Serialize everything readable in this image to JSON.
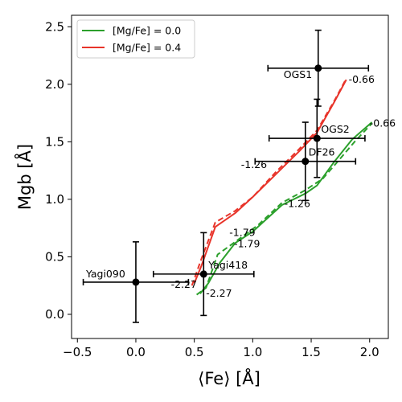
{
  "chart_data": {
    "type": "scatter",
    "xlabel": "⟨Fe⟩ [Å]",
    "ylabel": "Mgb [Å]",
    "xlim": [
      -0.55,
      2.16
    ],
    "ylim": [
      -0.21,
      2.6
    ],
    "xticks": [
      -0.5,
      0.0,
      0.5,
      1.0,
      1.5,
      2.0
    ],
    "xtick_labels": [
      "−0.5",
      "0.0",
      "0.5",
      "1.0",
      "1.5",
      "2.0"
    ],
    "yticks": [
      0.0,
      0.5,
      1.0,
      1.5,
      2.0,
      2.5
    ],
    "ytick_labels": [
      "0.0",
      "0.5",
      "1.0",
      "1.5",
      "2.0",
      "2.5"
    ],
    "grid": false,
    "legend_position": "top-left",
    "series": [
      {
        "name": "[Mg/Fe] = 0.0",
        "color": "#2ca02c",
        "solid": [
          [
            0.55,
            0.18
          ],
          [
            0.62,
            0.27
          ],
          [
            0.72,
            0.45
          ],
          [
            0.85,
            0.62
          ],
          [
            1.0,
            0.72
          ],
          [
            1.25,
            0.95
          ],
          [
            1.45,
            1.05
          ],
          [
            1.55,
            1.12
          ],
          [
            1.7,
            1.33
          ],
          [
            1.85,
            1.52
          ],
          [
            2.02,
            1.67
          ]
        ],
        "dashed": [
          [
            0.52,
            0.17
          ],
          [
            0.6,
            0.23
          ],
          [
            0.7,
            0.52
          ],
          [
            0.85,
            0.63
          ],
          [
            1.05,
            0.78
          ],
          [
            1.25,
            0.97
          ],
          [
            1.45,
            1.08
          ],
          [
            1.6,
            1.18
          ],
          [
            1.72,
            1.32
          ],
          [
            1.88,
            1.51
          ],
          [
            2.02,
            1.66
          ]
        ]
      },
      {
        "name": "[Mg/Fe] = 0.4",
        "color": "#e8342a",
        "solid": [
          [
            0.5,
            0.27
          ],
          [
            0.56,
            0.42
          ],
          [
            0.68,
            0.76
          ],
          [
            0.85,
            0.88
          ],
          [
            1.0,
            1.02
          ],
          [
            1.2,
            1.22
          ],
          [
            1.4,
            1.42
          ],
          [
            1.55,
            1.58
          ],
          [
            1.7,
            1.85
          ],
          [
            1.8,
            2.04
          ]
        ],
        "dashed": [
          [
            0.48,
            0.25
          ],
          [
            0.56,
            0.48
          ],
          [
            0.68,
            0.8
          ],
          [
            0.85,
            0.9
          ],
          [
            1.0,
            1.02
          ],
          [
            1.2,
            1.24
          ],
          [
            1.4,
            1.44
          ],
          [
            1.55,
            1.6
          ],
          [
            1.7,
            1.86
          ],
          [
            1.8,
            2.05
          ]
        ]
      }
    ],
    "points": [
      {
        "name": "Yagi090",
        "x": 0.0,
        "y": 0.28,
        "xerr": 0.45,
        "yerr": 0.35,
        "label_dx": -62,
        "label_dy": -6
      },
      {
        "name": "Yagi418",
        "x": 0.58,
        "y": 0.35,
        "xerr": 0.43,
        "yerr": 0.36,
        "label_dx": 6,
        "label_dy": -7
      },
      {
        "name": "DF26",
        "x": 1.45,
        "y": 1.33,
        "xerr": 0.43,
        "yerr": 0.34,
        "label_dx": 4,
        "label_dy": -7
      },
      {
        "name": "OGS2",
        "x": 1.55,
        "y": 1.53,
        "xerr": 0.41,
        "yerr": 0.34,
        "label_dx": 5,
        "label_dy": -7
      },
      {
        "name": "OGS1",
        "x": 1.56,
        "y": 2.14,
        "xerr": 0.43,
        "yerr": 0.33,
        "label_dx": -43,
        "label_dy": 12
      }
    ],
    "annotations": [
      {
        "text": "-2.27",
        "x": 0.3,
        "y": 0.26
      },
      {
        "text": "-2.27",
        "x": 0.6,
        "y": 0.18
      },
      {
        "text": "-1.79",
        "x": 0.8,
        "y": 0.71
      },
      {
        "text": "-1.79",
        "x": 0.84,
        "y": 0.61
      },
      {
        "text": "-1.26",
        "x": 0.9,
        "y": 1.3
      },
      {
        "text": "-1.26",
        "x": 1.27,
        "y": 0.96
      },
      {
        "text": "-0.66",
        "x": 1.82,
        "y": 2.04
      },
      {
        "text": "-0.66",
        "x": 2.0,
        "y": 1.66
      }
    ]
  }
}
